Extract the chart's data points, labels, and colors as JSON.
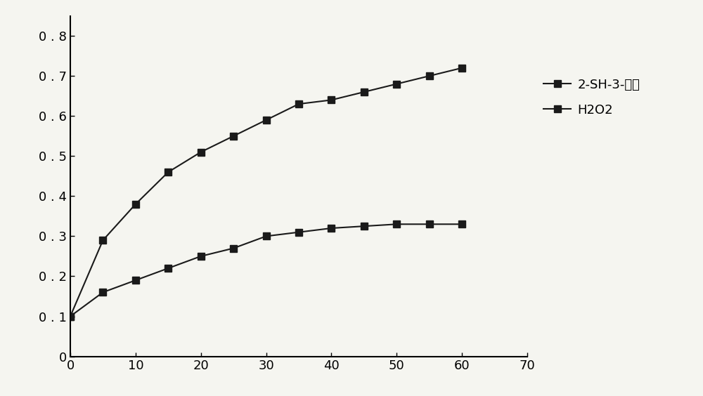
{
  "x": [
    0,
    5,
    10,
    15,
    20,
    25,
    30,
    35,
    40,
    45,
    50,
    55,
    60
  ],
  "series1_y": [
    0.1,
    0.29,
    0.38,
    0.46,
    0.51,
    0.55,
    0.59,
    0.63,
    0.64,
    0.66,
    0.68,
    0.7,
    0.72
  ],
  "series2_y": [
    0.1,
    0.16,
    0.19,
    0.22,
    0.25,
    0.27,
    0.3,
    0.31,
    0.32,
    0.325,
    0.33,
    0.33,
    0.33
  ],
  "series1_label": "2-SH-3-丁醇",
  "series2_label": "H2O2",
  "xlim": [
    0,
    70
  ],
  "ylim": [
    0,
    0.85
  ],
  "xticks": [
    0,
    10,
    20,
    30,
    40,
    50,
    60,
    70
  ],
  "yticks": [
    0,
    0.1,
    0.2,
    0.3,
    0.4,
    0.5,
    0.6,
    0.7,
    0.8
  ],
  "line_color": "#1a1a1a",
  "marker": "s",
  "markersize": 7,
  "linewidth": 1.5,
  "background_color": "#f5f5f0",
  "legend_fontsize": 13,
  "tick_fontsize": 13
}
